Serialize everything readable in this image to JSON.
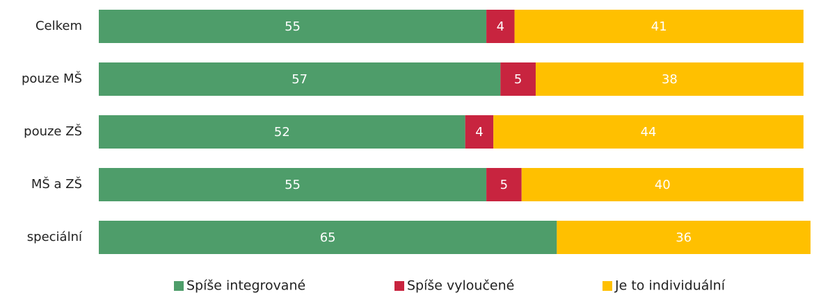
{
  "chart_data": {
    "type": "stacked-bar-horizontal",
    "categories": [
      "Celkem",
      "pouze MŠ",
      "pouze ZŠ",
      "MŠ a ZŠ",
      "speciální"
    ],
    "series": [
      {
        "name": "Spíše integrované",
        "color": "#4e9d6a",
        "values": [
          55,
          57,
          52,
          55,
          65
        ]
      },
      {
        "name": "Spíše vyloučené",
        "color": "#c8243f",
        "values": [
          4,
          5,
          4,
          5,
          null
        ]
      },
      {
        "name": "Je to individuální",
        "color": "#ffc000",
        "values": [
          41,
          38,
          44,
          40,
          36
        ]
      }
    ],
    "legend": "bottom"
  }
}
